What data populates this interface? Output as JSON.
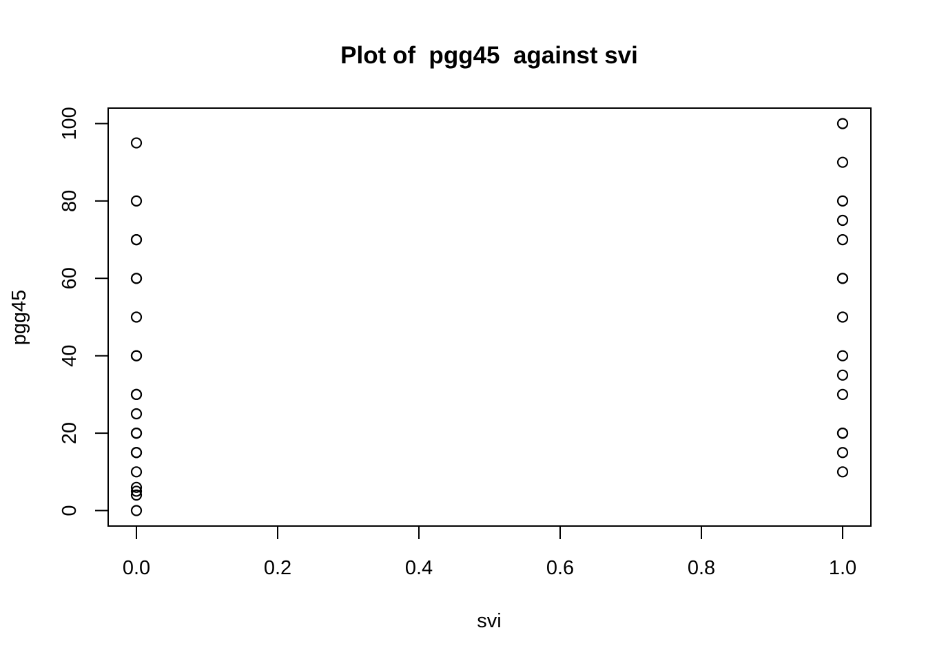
{
  "chart_data": {
    "type": "scatter",
    "title": "Plot of  pgg45  against svi",
    "xlabel": "svi",
    "ylabel": "pgg45",
    "xlim": [
      -0.04,
      1.04
    ],
    "ylim": [
      -4,
      104
    ],
    "x_ticks": [
      {
        "value": 0.0,
        "label": "0.0"
      },
      {
        "value": 0.2,
        "label": "0.2"
      },
      {
        "value": 0.4,
        "label": "0.4"
      },
      {
        "value": 0.6,
        "label": "0.6"
      },
      {
        "value": 0.8,
        "label": "0.8"
      },
      {
        "value": 1.0,
        "label": "1.0"
      }
    ],
    "y_ticks": [
      {
        "value": 0,
        "label": "0"
      },
      {
        "value": 20,
        "label": "20"
      },
      {
        "value": 40,
        "label": "40"
      },
      {
        "value": 60,
        "label": "60"
      },
      {
        "value": 80,
        "label": "80"
      },
      {
        "value": 100,
        "label": "100"
      }
    ],
    "grid": false,
    "legend": "none",
    "marker": "open-circle",
    "series": [
      {
        "x": [
          0,
          0,
          0,
          0,
          0,
          0,
          0,
          0,
          0,
          0,
          0,
          0,
          0,
          0,
          0,
          0,
          0,
          0,
          0,
          0,
          0,
          1,
          1,
          1,
          1,
          1,
          1,
          1,
          1,
          1,
          1,
          1,
          1,
          1,
          1,
          1
        ],
        "y": [
          95,
          80,
          70,
          70,
          60,
          60,
          50,
          40,
          40,
          30,
          30,
          25,
          20,
          20,
          15,
          15,
          10,
          6,
          5,
          4,
          0,
          100,
          90,
          80,
          75,
          70,
          60,
          60,
          50,
          40,
          35,
          30,
          20,
          20,
          15,
          10
        ]
      }
    ]
  }
}
